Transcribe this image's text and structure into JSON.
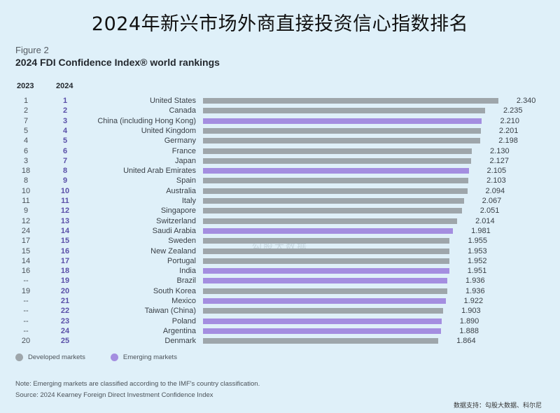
{
  "header": {
    "main_title": "2024年新兴市场外商直接投资信心指数排名",
    "figure_label": "Figure 2",
    "figure_title": "2024 FDI Confidence Index® world rankings",
    "col_2023": "2023",
    "col_2024": "2024"
  },
  "colors": {
    "developed": "#9ea6ab",
    "emerging": "#a48ee0",
    "background": "#dff0f9"
  },
  "legend": {
    "developed_label": "Developed markets",
    "emerging_label": "Emerging markets"
  },
  "footer": {
    "note": "Note: Emerging markets are classified according to the IMF's country classification.",
    "source": "Source: 2024 Kearney Foreign Direct Investment Confidence Index",
    "credit": "数据支持：勾股大数据、科尔尼"
  },
  "watermark": "勾股大数据",
  "chart_data": {
    "type": "bar",
    "orientation": "horizontal",
    "title": "2024 FDI Confidence Index® world rankings",
    "subtitle": "Figure 2",
    "xlabel": "",
    "ylabel": "",
    "grid": false,
    "legend_position": "bottom-left",
    "legend": [
      "Developed markets",
      "Emerging markets"
    ],
    "categories": [
      "United States",
      "Canada",
      "China (including Hong Kong)",
      "United Kingdom",
      "Germany",
      "France",
      "Japan",
      "United Arab Emirates",
      "Spain",
      "Australia",
      "Italy",
      "Singapore",
      "Switzerland",
      "Saudi Arabia",
      "Sweden",
      "New Zealand",
      "Portugal",
      "India",
      "Brazil",
      "South Korea",
      "Mexico",
      "Taiwan (China)",
      "Poland",
      "Argentina",
      "Denmark"
    ],
    "values": [
      2.34,
      2.235,
      2.21,
      2.201,
      2.198,
      2.13,
      2.127,
      2.105,
      2.103,
      2.094,
      2.067,
      2.051,
      2.014,
      1.981,
      1.955,
      1.953,
      1.952,
      1.951,
      1.936,
      1.936,
      1.922,
      1.903,
      1.89,
      1.888,
      1.864
    ],
    "rank_2023": [
      "1",
      "2",
      "7",
      "5",
      "4",
      "6",
      "3",
      "18",
      "8",
      "10",
      "11",
      "9",
      "12",
      "24",
      "17",
      "15",
      "14",
      "16",
      "--",
      "19",
      "--",
      "--",
      "--",
      "--",
      "20"
    ],
    "rank_2024": [
      "1",
      "2",
      "3",
      "4",
      "5",
      "6",
      "7",
      "8",
      "9",
      "10",
      "11",
      "12",
      "13",
      "14",
      "15",
      "16",
      "17",
      "18",
      "19",
      "20",
      "21",
      "22",
      "23",
      "24",
      "25"
    ],
    "market_type": [
      "developed",
      "developed",
      "emerging",
      "developed",
      "developed",
      "developed",
      "developed",
      "emerging",
      "developed",
      "developed",
      "developed",
      "developed",
      "developed",
      "emerging",
      "developed",
      "developed",
      "developed",
      "emerging",
      "emerging",
      "developed",
      "emerging",
      "developed",
      "emerging",
      "emerging",
      "developed"
    ],
    "value_labels": [
      "2.340",
      "2.235",
      "2.210",
      "2.201",
      "2.198",
      "2.130",
      "2.127",
      "2.105",
      "2.103",
      "2.094",
      "2.067",
      "2.051",
      "2.014",
      "1.981",
      "1.955",
      "1.953",
      "1.952",
      "1.951",
      "1.936",
      "1.936",
      "1.922",
      "1.903",
      "1.890",
      "1.888",
      "1.864"
    ]
  }
}
